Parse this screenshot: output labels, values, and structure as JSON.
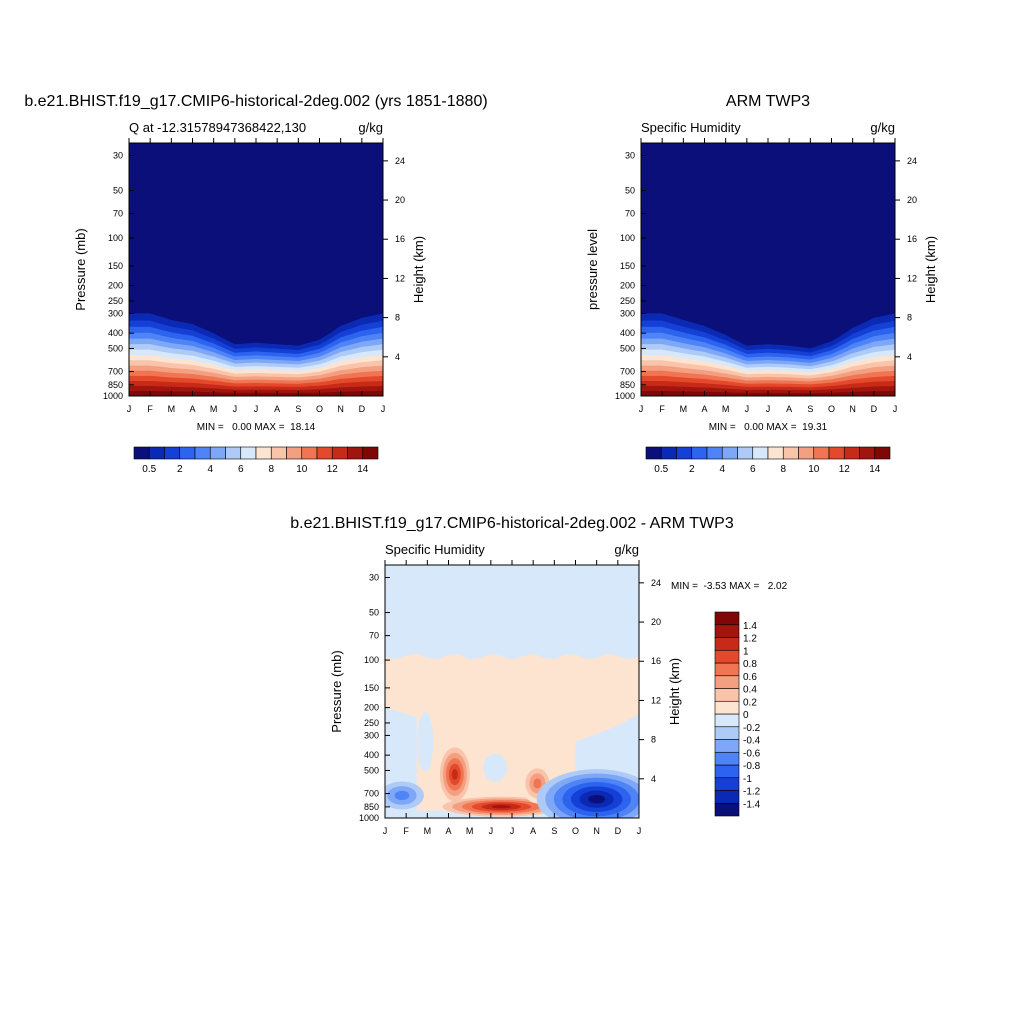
{
  "chart_data": [
    {
      "type": "heatmap",
      "title": "b.e21.BHIST.f19_g17.CMIP6-historical-2deg.002 (yrs 1851-1880)",
      "left_label": "Q at -12.31578947368422,130",
      "units": "g/kg",
      "ylabel": "Pressure (mb)",
      "ylabel_right": "Height (km)",
      "x_ticks": [
        "J",
        "F",
        "M",
        "A",
        "M",
        "J",
        "J",
        "A",
        "S",
        "O",
        "N",
        "D",
        "J"
      ],
      "y_ticks": [
        30,
        50,
        70,
        100,
        150,
        200,
        250,
        300,
        400,
        500,
        700,
        850,
        1000
      ],
      "y_right_ticks": [
        24,
        20,
        16,
        12,
        8,
        4
      ],
      "ylim": [
        1000,
        25
      ],
      "stats": "MIN =   0.00 MAX =  18.14",
      "colorbar_levels": [
        0.5,
        1,
        2,
        3,
        4,
        5,
        6,
        7,
        8,
        9,
        10,
        11,
        12,
        13,
        14
      ],
      "colorbar_labels": [
        "0.5",
        "2",
        "4",
        "6",
        "8",
        "10",
        "12",
        "14"
      ],
      "colors": [
        "#0b0f7a",
        "#0a2ab5",
        "#1440d6",
        "#2c63ef",
        "#4f84f7",
        "#7ea7f8",
        "#aecbf7",
        "#d8e8fb",
        "#fde4d0",
        "#f9c4a9",
        "#f49f81",
        "#f07552",
        "#e4492c",
        "#c72a19",
        "#a0150d",
        "#7e0808"
      ],
      "moisture_top_hpa": [
        300,
        300,
        330,
        350,
        400,
        470,
        460,
        470,
        480,
        440,
        360,
        320,
        300
      ]
    },
    {
      "type": "heatmap",
      "title": "ARM TWP3",
      "left_label": "Specific Humidity",
      "units": "g/kg",
      "ylabel": "pressure level",
      "ylabel_right": "Height (km)",
      "x_ticks": [
        "J",
        "F",
        "M",
        "A",
        "M",
        "J",
        "J",
        "A",
        "S",
        "O",
        "N",
        "D",
        "J"
      ],
      "y_ticks": [
        30,
        50,
        70,
        100,
        150,
        200,
        250,
        300,
        400,
        500,
        700,
        850,
        1000
      ],
      "y_right_ticks": [
        24,
        20,
        16,
        12,
        8,
        4
      ],
      "ylim": [
        1000,
        25
      ],
      "stats": "MIN =   0.00 MAX =  19.31",
      "colorbar_levels": [
        0.5,
        1,
        2,
        3,
        4,
        5,
        6,
        7,
        8,
        9,
        10,
        11,
        12,
        13,
        14
      ],
      "colorbar_labels": [
        "0.5",
        "2",
        "4",
        "6",
        "8",
        "10",
        "12",
        "14"
      ],
      "colors": [
        "#0b0f7a",
        "#0a2ab5",
        "#1440d6",
        "#2c63ef",
        "#4f84f7",
        "#7ea7f8",
        "#aecbf7",
        "#d8e8fb",
        "#fde4d0",
        "#f9c4a9",
        "#f49f81",
        "#f07552",
        "#e4492c",
        "#c72a19",
        "#a0150d",
        "#7e0808"
      ],
      "moisture_top_hpa": [
        300,
        300,
        330,
        360,
        410,
        480,
        470,
        480,
        500,
        450,
        370,
        320,
        300
      ]
    },
    {
      "type": "heatmap",
      "title": "b.e21.BHIST.f19_g17.CMIP6-historical-2deg.002 - ARM TWP3",
      "left_label": "Specific Humidity",
      "units": "g/kg",
      "ylabel": "Pressure (mb)",
      "ylabel_right": "Height (km)",
      "x_ticks": [
        "J",
        "F",
        "M",
        "A",
        "M",
        "J",
        "J",
        "A",
        "S",
        "O",
        "N",
        "D",
        "J"
      ],
      "y_ticks": [
        30,
        50,
        70,
        100,
        150,
        200,
        250,
        300,
        400,
        500,
        700,
        850,
        1000
      ],
      "y_right_ticks": [
        24,
        20,
        16,
        12,
        8,
        4
      ],
      "ylim": [
        1000,
        25
      ],
      "stats": "MIN =  -3.53 MAX =   2.02",
      "colorbar_levels": [
        -1.4,
        -1.2,
        -1,
        -0.8,
        -0.6,
        -0.4,
        -0.2,
        0,
        0.2,
        0.4,
        0.6,
        0.8,
        1,
        1.2,
        1.4
      ],
      "colorbar_labels": [
        "-1.4",
        "-1.2",
        "-1",
        "-0.8",
        "-0.6",
        "-0.4",
        "-0.2",
        "0",
        "0.2",
        "0.4",
        "0.6",
        "0.8",
        "1",
        "1.2",
        "1.4"
      ],
      "colors": [
        "#0b0f7a",
        "#0a2ab5",
        "#1440d6",
        "#2c63ef",
        "#4f84f7",
        "#7ea7f8",
        "#aecbf7",
        "#d8e8fb",
        "#fde4d0",
        "#f9c4a9",
        "#f49f81",
        "#f07552",
        "#e4492c",
        "#c72a19",
        "#a0150d",
        "#7e0808"
      ],
      "upper_positive_top_hpa": 95,
      "features": [
        {
          "name": "positive-april-core",
          "month": 3.3,
          "p_top": 330,
          "p_bottom": 850,
          "value": 1.4
        },
        {
          "name": "positive-low-level-band",
          "month_from": 3,
          "month_to": 8,
          "p_top": 800,
          "p_bottom": 900,
          "value": 1.5
        },
        {
          "name": "positive-july-blob",
          "month": 7.2,
          "p_top": 480,
          "p_bottom": 760,
          "value": 0.8
        },
        {
          "name": "negative-fall-core",
          "month": 10,
          "p_top": 520,
          "p_bottom": 950,
          "value": -1.4
        },
        {
          "name": "negative-january-patch",
          "month": 0.8,
          "p_top": 560,
          "p_bottom": 860,
          "value": -0.6
        }
      ]
    }
  ]
}
